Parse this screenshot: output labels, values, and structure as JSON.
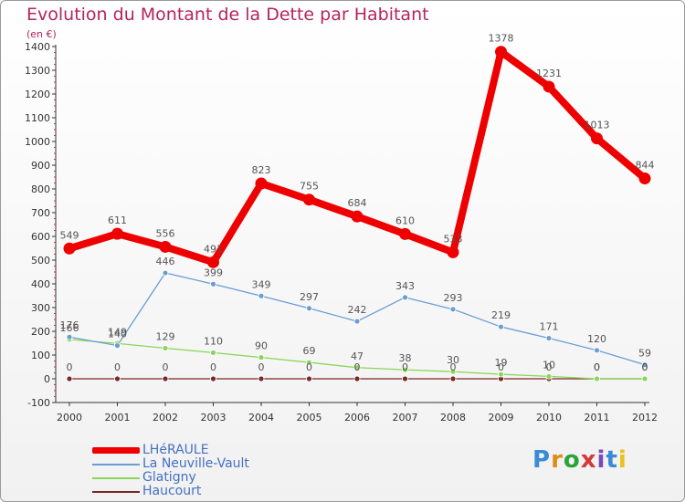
{
  "title": "Evolution du Montant de la Dette par Habitant",
  "subtitle": "(en €)",
  "brand": "Proxiti",
  "colors": {
    "title": "#b5245b",
    "axis": "#333333",
    "legend_text": "#4470c4"
  },
  "chart_data": {
    "type": "line",
    "categories": [
      "2000",
      "2001",
      "2002",
      "2003",
      "2004",
      "2005",
      "2006",
      "2007",
      "2008",
      "2009",
      "2010",
      "2011",
      "2012"
    ],
    "ylim": [
      -100,
      1400
    ],
    "yticks": [
      -100,
      0,
      100,
      200,
      300,
      400,
      500,
      600,
      700,
      800,
      900,
      1000,
      1100,
      1200,
      1300,
      1400
    ],
    "grid": false,
    "legend_position": "bottom-left",
    "series": [
      {
        "name": "LHéRAULE",
        "color": "#ee0000",
        "weight": "thick",
        "values": [
          549,
          611,
          556,
          491,
          823,
          755,
          684,
          610,
          533,
          1378,
          1231,
          1013,
          844
        ],
        "labels": [
          "549",
          "611",
          "556",
          "491",
          "823",
          "755",
          "684",
          "610",
          "533",
          "1378",
          "1231",
          "1013",
          "844"
        ]
      },
      {
        "name": "La Neuville-Vault",
        "color": "#6a9ed2",
        "weight": "thin",
        "values": [
          176,
          140,
          446,
          399,
          349,
          297,
          242,
          343,
          293,
          219,
          171,
          120,
          59
        ],
        "labels": [
          "176",
          "140",
          "446",
          "399",
          "349",
          "297",
          "242",
          "343",
          "293",
          "219",
          "171",
          "120",
          "59"
        ]
      },
      {
        "name": "Glatigny",
        "color": "#8ad65a",
        "weight": "thin",
        "values": [
          166,
          149,
          129,
          110,
          90,
          69,
          47,
          38,
          30,
          19,
          10,
          0,
          0
        ],
        "labels": [
          "166",
          "149",
          "129",
          "110",
          "90",
          "69",
          "47",
          "38",
          "30",
          "19",
          "10",
          "0",
          "0"
        ]
      },
      {
        "name": "Haucourt",
        "color": "#7a2828",
        "weight": "thin",
        "values": [
          0,
          0,
          0,
          0,
          0,
          0,
          0,
          0,
          0,
          0,
          0,
          0,
          0
        ],
        "labels": [
          "0",
          "0",
          "0",
          "0",
          "0",
          "0",
          "0",
          "0",
          "0",
          "0",
          "0",
          "0",
          "0"
        ]
      }
    ]
  }
}
